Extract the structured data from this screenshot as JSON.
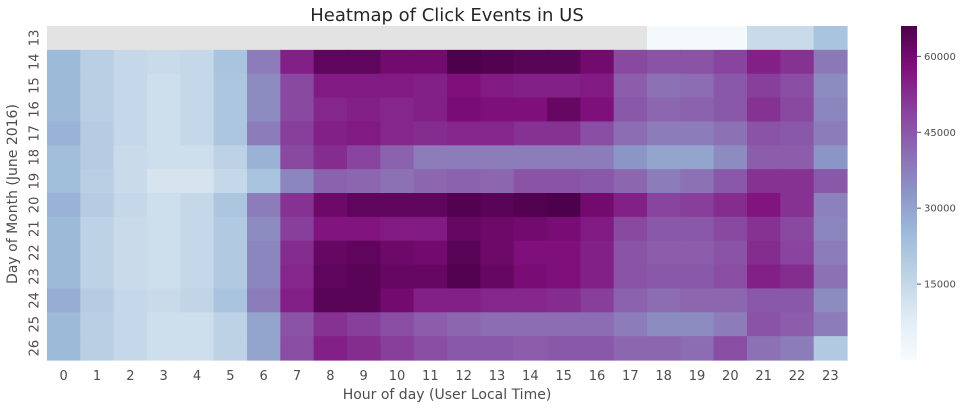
{
  "chart_data": {
    "type": "heatmap",
    "title": "Heatmap of Click Events in US",
    "xlabel": "Hour of day (User Local Time)",
    "ylabel": "Day of Month (June 2016)",
    "x_categories": [
      "0",
      "1",
      "2",
      "3",
      "4",
      "5",
      "6",
      "7",
      "8",
      "9",
      "10",
      "11",
      "12",
      "13",
      "14",
      "15",
      "16",
      "17",
      "18",
      "19",
      "20",
      "21",
      "22",
      "23"
    ],
    "y_categories": [
      "13",
      "14",
      "15",
      "16",
      "17",
      "18",
      "19",
      "20",
      "21",
      "22",
      "23",
      "24",
      "25",
      "26"
    ],
    "colormap": "BuPu",
    "missing_color": "#e3e3e3",
    "value_range": [
      0,
      66000
    ],
    "colorbar_ticks": [
      "15000",
      "30000",
      "45000",
      "60000"
    ],
    "values": [
      [
        null,
        null,
        null,
        null,
        null,
        null,
        null,
        null,
        null,
        null,
        null,
        null,
        null,
        null,
        null,
        null,
        null,
        null,
        1000,
        1000,
        1000,
        14000,
        14000,
        22000
      ],
      [
        25000,
        18000,
        15000,
        14000,
        15000,
        22000,
        38000,
        55000,
        63000,
        63000,
        60000,
        60000,
        66000,
        65000,
        64000,
        64000,
        60000,
        48000,
        46000,
        46000,
        49000,
        55000,
        52000,
        39000
      ],
      [
        25000,
        18000,
        15000,
        13000,
        15000,
        21000,
        35000,
        48000,
        56000,
        56000,
        56000,
        55000,
        58000,
        56000,
        55000,
        55000,
        56000,
        44000,
        40000,
        41000,
        45000,
        50000,
        47000,
        35000
      ],
      [
        25000,
        18000,
        15000,
        13000,
        15000,
        21000,
        35000,
        48000,
        54000,
        55000,
        54000,
        55000,
        59000,
        58000,
        58000,
        62000,
        58000,
        45000,
        42000,
        43000,
        45000,
        52000,
        48000,
        36000
      ],
      [
        27000,
        19000,
        15000,
        13000,
        15000,
        21000,
        38000,
        50000,
        55000,
        56000,
        54000,
        53000,
        54000,
        54000,
        52000,
        52000,
        47000,
        41000,
        38000,
        38000,
        40000,
        46000,
        45000,
        38000
      ],
      [
        24000,
        19000,
        14000,
        13000,
        13000,
        17000,
        27000,
        48000,
        53000,
        49000,
        43000,
        38000,
        38000,
        38000,
        38000,
        38000,
        38000,
        33000,
        30000,
        30000,
        35000,
        44000,
        44000,
        33000
      ],
      [
        24000,
        18000,
        14000,
        11000,
        11000,
        15000,
        22000,
        36000,
        43000,
        42000,
        40000,
        42000,
        43000,
        42000,
        46000,
        46000,
        45000,
        42000,
        38000,
        40000,
        45000,
        52000,
        52000,
        45000
      ],
      [
        27000,
        19000,
        15000,
        13000,
        15000,
        21000,
        38000,
        52000,
        61000,
        63000,
        63000,
        63000,
        65000,
        64000,
        65000,
        66000,
        60000,
        55000,
        49000,
        50000,
        53000,
        57000,
        52000,
        37000
      ],
      [
        25000,
        17000,
        14000,
        13000,
        15000,
        20000,
        35000,
        50000,
        57000,
        57000,
        56000,
        56000,
        62000,
        61000,
        60000,
        59000,
        56000,
        48000,
        45000,
        45000,
        48000,
        52000,
        48000,
        36000
      ],
      [
        25000,
        17000,
        14000,
        13000,
        15000,
        20000,
        36000,
        53000,
        62000,
        63000,
        61000,
        60000,
        64000,
        61000,
        58000,
        58000,
        55000,
        46000,
        44000,
        44000,
        46000,
        53000,
        49000,
        38000
      ],
      [
        25000,
        17000,
        14000,
        13000,
        15000,
        20000,
        36000,
        54000,
        63000,
        64000,
        62000,
        62000,
        65000,
        62000,
        59000,
        58000,
        55000,
        46000,
        45000,
        45000,
        47000,
        55000,
        53000,
        40000
      ],
      [
        28000,
        19000,
        15000,
        14000,
        16000,
        22000,
        38000,
        55000,
        64000,
        64000,
        60000,
        55000,
        55000,
        54000,
        54000,
        53000,
        50000,
        43000,
        41000,
        42000,
        42000,
        45000,
        45000,
        35000
      ],
      [
        25000,
        18000,
        15000,
        13000,
        13000,
        17000,
        30000,
        46000,
        52000,
        50000,
        47000,
        44000,
        42000,
        41000,
        41000,
        41000,
        41000,
        38000,
        35000,
        35000,
        38000,
        46000,
        44000,
        38000
      ],
      [
        25000,
        18000,
        15000,
        13000,
        13000,
        17000,
        30000,
        47000,
        55000,
        53000,
        50000,
        47000,
        45000,
        45000,
        44000,
        45000,
        45000,
        42000,
        42000,
        41000,
        47000,
        40000,
        38000,
        20000
      ]
    ]
  }
}
